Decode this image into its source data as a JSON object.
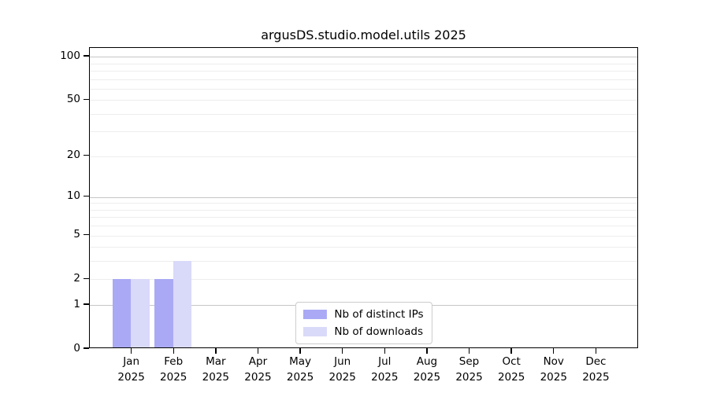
{
  "title": "argusDS.studio.model.utils 2025",
  "chart_data": {
    "type": "bar",
    "title": "argusDS.studio.model.utils 2025",
    "categories": [
      "Jan",
      "Feb",
      "Mar",
      "Apr",
      "May",
      "Jun",
      "Jul",
      "Aug",
      "Sep",
      "Oct",
      "Nov",
      "Dec"
    ],
    "category_year": "2025",
    "series": [
      {
        "name": "Nb of distinct IPs",
        "color": "#a9a9f5",
        "values": [
          2,
          2,
          0,
          0,
          0,
          0,
          0,
          0,
          0,
          0,
          0,
          0
        ]
      },
      {
        "name": "Nb of downloads",
        "color": "#d9d9f9",
        "values": [
          2,
          3,
          0,
          0,
          0,
          0,
          0,
          0,
          0,
          0,
          0,
          0
        ]
      }
    ],
    "yscale": "log1p",
    "ylim": [
      0,
      115
    ],
    "yticks": [
      0,
      1,
      2,
      5,
      10,
      20,
      50,
      100
    ],
    "grid": {
      "major": [
        1,
        10,
        100
      ],
      "minor": [
        2,
        3,
        4,
        5,
        6,
        7,
        8,
        9,
        20,
        30,
        40,
        50,
        60,
        70,
        80,
        90
      ]
    },
    "legend_position": "lower center",
    "colors": {
      "grid_major": "#c6c6c6",
      "grid_minor": "#ededed",
      "axis": "#000000"
    }
  }
}
